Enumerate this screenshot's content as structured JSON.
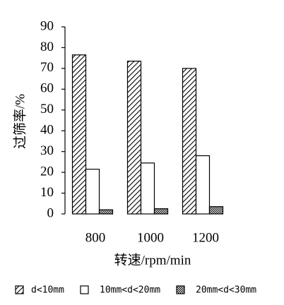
{
  "chart_data": {
    "type": "bar",
    "categories": [
      "800",
      "1000",
      "1200"
    ],
    "series": [
      {
        "name": "d<10mm",
        "color": "#000000",
        "values": [
          76.5,
          73.5,
          70
        ]
      },
      {
        "name": "10mm<d<20mm",
        "color": "#000000",
        "values": [
          21.5,
          24.5,
          28
        ]
      },
      {
        "name": "20mm<d<30mm",
        "color": "#000000",
        "values": [
          2,
          2.5,
          3.5
        ]
      }
    ],
    "ylim": [
      0,
      90
    ],
    "yticks": [
      0,
      10,
      20,
      30,
      40,
      50,
      60,
      70,
      80,
      90
    ],
    "ylabel": "过筛率/%",
    "xlabel": "转速/rpm/min"
  }
}
